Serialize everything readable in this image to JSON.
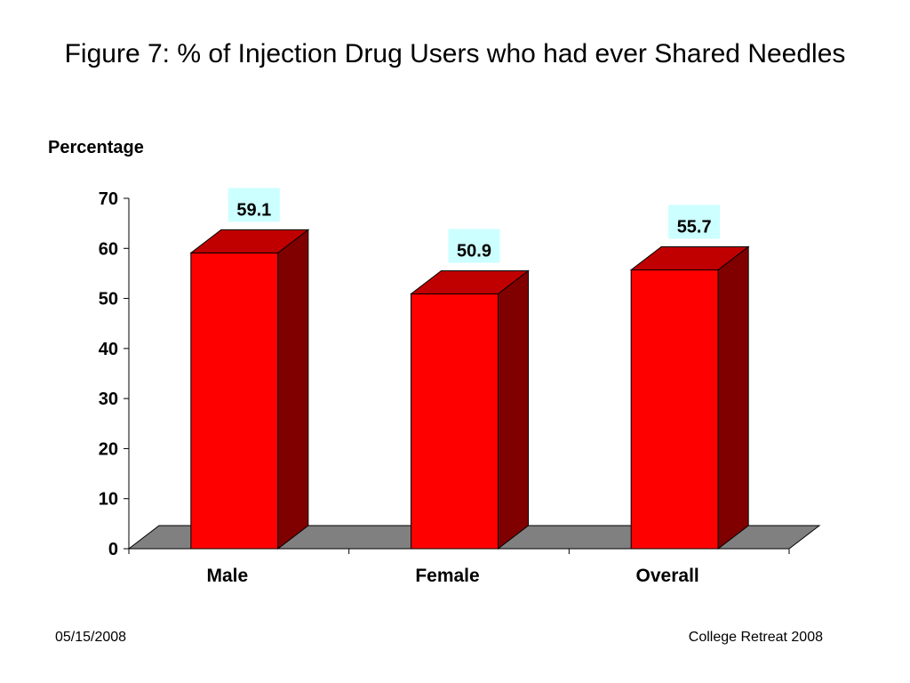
{
  "slide": {
    "title": "Figure 7: % of Injection Drug Users who had ever Shared Needles",
    "footer_date": "05/15/2008",
    "footer_event": "College Retreat 2008"
  },
  "colors": {
    "bar_front": "#ff0000",
    "bar_top": "#c00000",
    "bar_side": "#800000",
    "floor": "#808080",
    "label_bg": "#ccffff"
  },
  "chart_data": {
    "type": "bar",
    "title": "Figure 7: % of Injection Drug Users who had ever Shared Needles",
    "xlabel": "",
    "ylabel": "Percentage",
    "categories": [
      "Male",
      "Female",
      "Overall"
    ],
    "values": [
      59.1,
      50.9,
      55.7
    ],
    "data_labels": [
      "59.1",
      "50.9",
      "55.7"
    ],
    "ylim": [
      0,
      70
    ],
    "yticks": [
      0,
      10,
      20,
      30,
      40,
      50,
      60,
      70
    ],
    "grid": false,
    "legend": "none",
    "style": "3d"
  }
}
